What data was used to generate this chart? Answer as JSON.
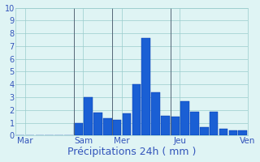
{
  "xlabel": "Précipitations 24h ( mm )",
  "ylim": [
    0,
    10
  ],
  "yticks": [
    0,
    1,
    2,
    3,
    4,
    5,
    6,
    7,
    8,
    9,
    10
  ],
  "background_color": "#dff4f4",
  "bar_color": "#1a5fd4",
  "bar_edge_color": "#0033aa",
  "day_labels": [
    "Mar",
    "Sam",
    "Mer",
    "Jeu",
    "Ven"
  ],
  "day_label_color": "#3355bb",
  "day_label_fontsize": 7.5,
  "n_bars": 24,
  "values": [
    0,
    0,
    0,
    0,
    0,
    0,
    1.0,
    3.0,
    1.8,
    1.35,
    1.2,
    1.75,
    4.0,
    7.6,
    3.4,
    1.55,
    1.5,
    2.7,
    1.85,
    0.65,
    1.85,
    0.5,
    0.4,
    0.4
  ],
  "day_tick_positions": [
    0.5,
    6.5,
    10.5,
    16.5,
    23.5
  ],
  "vline_positions": [
    6,
    10,
    16
  ],
  "xlabel_color": "#3355bb",
  "xlabel_fontsize": 9,
  "tick_color": "#3355bb",
  "tick_fontsize": 7,
  "grid_color": "#99cccc",
  "vline_color": "#556677"
}
